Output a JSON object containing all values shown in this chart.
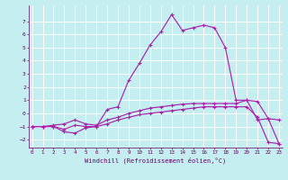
{
  "xlabel": "Windchill (Refroidissement éolien,°C)",
  "bg_color": "#c5eef0",
  "grid_color": "#ffffff",
  "line_color": "#aa22aa",
  "x_ticks": [
    0,
    1,
    2,
    3,
    4,
    5,
    6,
    7,
    8,
    9,
    10,
    11,
    12,
    13,
    14,
    15,
    16,
    17,
    18,
    19,
    20,
    21,
    22,
    23
  ],
  "y_ticks": [
    -2,
    -1,
    0,
    1,
    2,
    3,
    4,
    5,
    6,
    7
  ],
  "xlim": [
    -0.3,
    23.3
  ],
  "ylim": [
    -2.6,
    8.2
  ],
  "line1_x": [
    0,
    1,
    2,
    3,
    4,
    5,
    6,
    7,
    8,
    9,
    10,
    11,
    12,
    13,
    14,
    15,
    16,
    17,
    18,
    19,
    20,
    21,
    22,
    23
  ],
  "line1_y": [
    -1.0,
    -1.0,
    -0.9,
    -0.8,
    -0.5,
    -0.8,
    -0.9,
    -0.5,
    -0.3,
    0.0,
    0.2,
    0.4,
    0.5,
    0.6,
    0.7,
    0.75,
    0.75,
    0.75,
    0.75,
    0.75,
    1.0,
    0.9,
    -0.4,
    -0.5
  ],
  "line2_x": [
    0,
    1,
    2,
    3,
    4,
    5,
    6,
    7,
    8,
    9,
    10,
    11,
    12,
    13,
    14,
    15,
    16,
    17,
    18,
    19,
    20,
    21,
    22,
    23
  ],
  "line2_y": [
    -1.0,
    -1.0,
    -1.0,
    -1.2,
    -0.9,
    -1.0,
    -1.0,
    0.3,
    0.5,
    2.5,
    3.8,
    5.2,
    6.2,
    7.5,
    6.3,
    6.5,
    6.7,
    6.5,
    5.0,
    1.0,
    1.0,
    -0.5,
    -0.4,
    -2.3
  ],
  "line3_x": [
    0,
    1,
    2,
    3,
    4,
    5,
    6,
    7,
    8,
    9,
    10,
    11,
    12,
    13,
    14,
    15,
    16,
    17,
    18,
    19,
    20,
    21,
    22,
    23
  ],
  "line3_y": [
    -1.0,
    -1.0,
    -1.0,
    -1.4,
    -1.5,
    -1.1,
    -1.0,
    -0.8,
    -0.5,
    -0.3,
    -0.1,
    0.0,
    0.1,
    0.2,
    0.3,
    0.4,
    0.5,
    0.5,
    0.5,
    0.5,
    0.5,
    -0.3,
    -2.2,
    -2.3
  ],
  "tick_fontsize": 4.2,
  "xlabel_fontsize": 5.0,
  "tick_color": "#660066",
  "spine_color": "#660066"
}
